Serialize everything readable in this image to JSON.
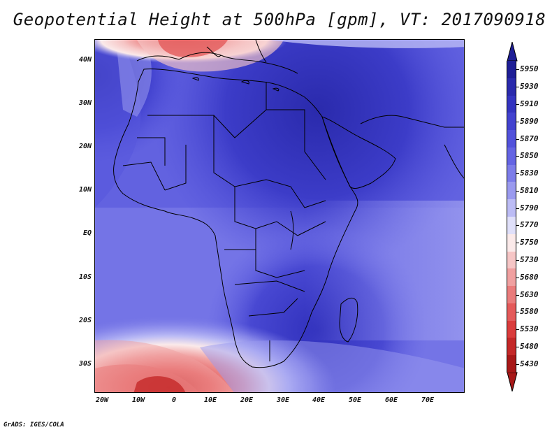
{
  "title": "Geopotential Height at 500hPa [gpm], VT: 2017090918",
  "footer": "GrADS: IGES/COLA",
  "map": {
    "lat_labels": [
      "40N",
      "30N",
      "20N",
      "10N",
      "EQ",
      "10S",
      "20S",
      "30S"
    ],
    "lon_labels": [
      "20W",
      "10W",
      "0",
      "10E",
      "20E",
      "30E",
      "40E",
      "50E",
      "60E",
      "70E"
    ]
  },
  "colorbar": {
    "levels": [
      "5950",
      "5930",
      "5910",
      "5890",
      "5870",
      "5850",
      "5830",
      "5810",
      "5790",
      "5770",
      "5750",
      "5730",
      "5680",
      "5630",
      "5580",
      "5530",
      "5480",
      "5430"
    ],
    "colors": [
      "#1e1e96",
      "#2a2aac",
      "#3434c0",
      "#4242cf",
      "#5252db",
      "#6464e3",
      "#7c7ce9",
      "#9a9aef",
      "#bcbcf5",
      "#e0e0fa",
      "#fbeaea",
      "#f6c6c6",
      "#f0a0a0",
      "#ea7c7c",
      "#e45a5a",
      "#da3c3c",
      "#c42828",
      "#a81818"
    ]
  }
}
